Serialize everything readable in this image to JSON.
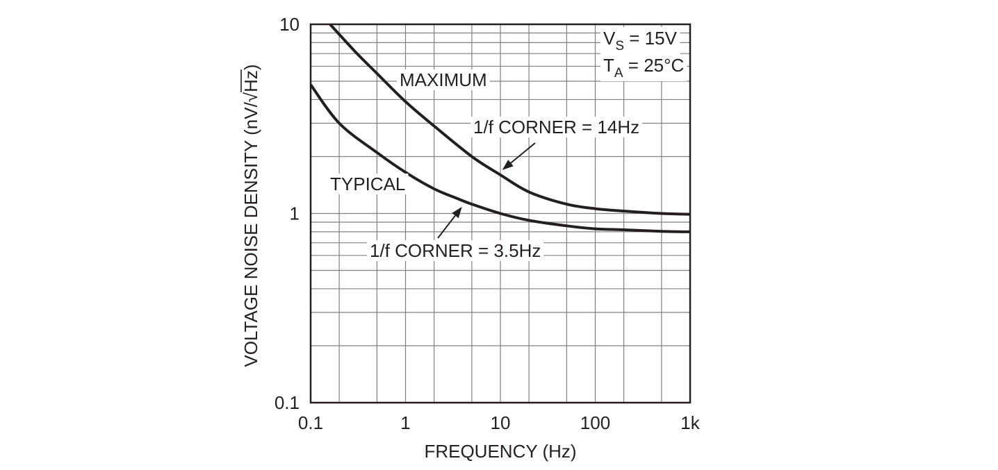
{
  "chart_data": {
    "type": "line",
    "xscale": "log",
    "yscale": "log",
    "xlim": [
      0.1,
      1000
    ],
    "ylim": [
      0.1,
      10
    ],
    "xlabel": "FREQUENCY (Hz)",
    "ylabel": "VOLTAGE NOISE DENSITY (nV/√Hz)",
    "ylabel_parts": {
      "main": "VOLTAGE NOISE DENSITY (nV/",
      "radical": "√",
      "radicand": "Hz",
      "close": ")"
    },
    "xticks": [
      {
        "value": 0.1,
        "label": "0.1"
      },
      {
        "value": 1,
        "label": "1"
      },
      {
        "value": 10,
        "label": "10"
      },
      {
        "value": 100,
        "label": "100"
      },
      {
        "value": 1000,
        "label": "1k"
      }
    ],
    "yticks": [
      {
        "value": 0.1,
        "label": "0.1"
      },
      {
        "value": 1,
        "label": "1"
      },
      {
        "value": 10,
        "label": "10"
      }
    ],
    "grid": true,
    "series": [
      {
        "name": "MAXIMUM",
        "x": [
          0.16,
          0.3,
          0.5,
          1,
          2,
          5,
          10,
          20,
          50,
          100,
          200,
          500,
          1000
        ],
        "y": [
          10,
          7.1,
          5.5,
          3.9,
          2.9,
          2.0,
          1.6,
          1.3,
          1.12,
          1.06,
          1.03,
          1.0,
          0.99
        ]
      },
      {
        "name": "TYPICAL",
        "x": [
          0.1,
          0.2,
          0.5,
          1,
          2,
          3.5,
          5,
          10,
          20,
          50,
          100,
          200,
          500,
          1000
        ],
        "y": [
          4.8,
          3.0,
          2.1,
          1.65,
          1.35,
          1.2,
          1.12,
          1.0,
          0.92,
          0.86,
          0.83,
          0.82,
          0.805,
          0.8
        ]
      }
    ],
    "annotations": [
      {
        "text": "MAXIMUM",
        "series": "MAXIMUM"
      },
      {
        "text": "TYPICAL",
        "series": "TYPICAL"
      },
      {
        "text": "1/f CORNER = 14Hz",
        "arrow_target": {
          "x": 11,
          "y": 1.6
        }
      },
      {
        "text": "1/f CORNER = 3.5Hz",
        "arrow_target": {
          "x": 3.5,
          "y": 1.2
        }
      }
    ],
    "conditions": [
      {
        "main": "V",
        "sub": "S",
        "rest": " = 15V"
      },
      {
        "main": "T",
        "sub": "A",
        "rest": " = 25°C"
      }
    ],
    "colors": {
      "curve": "#231f20",
      "grid": "#808080",
      "frame": "#231f20",
      "text": "#231f20",
      "background": "#ffffff"
    }
  }
}
